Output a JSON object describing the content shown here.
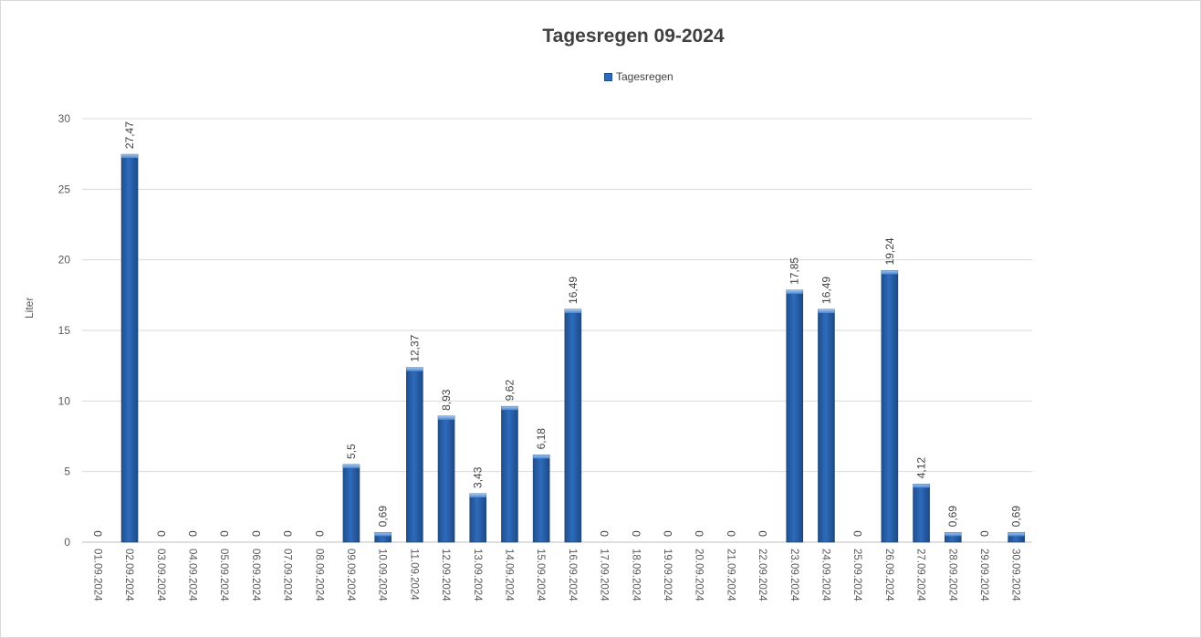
{
  "chart_data": {
    "type": "bar",
    "title": "Tagesregen 09-2024",
    "ylabel": "Liter",
    "xlabel": "",
    "ylim": [
      0,
      30
    ],
    "yticks": [
      0,
      5,
      10,
      15,
      20,
      25,
      30
    ],
    "legend": "top-center",
    "grid": true,
    "bar_color": "#2e6bbd",
    "categories": [
      "01.09.2024",
      "02.09.2024",
      "03.09.2024",
      "04.09.2024",
      "05.09.2024",
      "06.09.2024",
      "07.09.2024",
      "08.09.2024",
      "09.09.2024",
      "10.09.2024",
      "11.09.2024",
      "12.09.2024",
      "13.09.2024",
      "14.09.2024",
      "15.09.2024",
      "16.09.2024",
      "17.09.2024",
      "18.09.2024",
      "19.09.2024",
      "20.09.2024",
      "21.09.2024",
      "22.09.2024",
      "23.09.2024",
      "24.09.2024",
      "25.09.2024",
      "26.09.2024",
      "27.09.2024",
      "28.09.2024",
      "29.09.2024",
      "30.09.2024"
    ],
    "series": [
      {
        "name": "Tagesregen",
        "values": [
          0,
          27.47,
          0,
          0,
          0,
          0,
          0,
          0,
          5.5,
          0.69,
          12.37,
          8.93,
          3.43,
          9.62,
          6.18,
          16.49,
          0,
          0,
          0,
          0,
          0,
          0,
          17.85,
          16.49,
          0,
          19.24,
          4.12,
          0.69,
          0,
          0.69
        ],
        "labels": [
          "0",
          "27,47",
          "0",
          "0",
          "0",
          "0",
          "0",
          "0",
          "5,5",
          "0,69",
          "12,37",
          "8,93",
          "3,43",
          "9,62",
          "6,18",
          "16,49",
          "0",
          "0",
          "0",
          "0",
          "0",
          "0",
          "17,85",
          "16,49",
          "0",
          "19,24",
          "4,12",
          "0,69",
          "0",
          "0,69"
        ]
      }
    ]
  }
}
